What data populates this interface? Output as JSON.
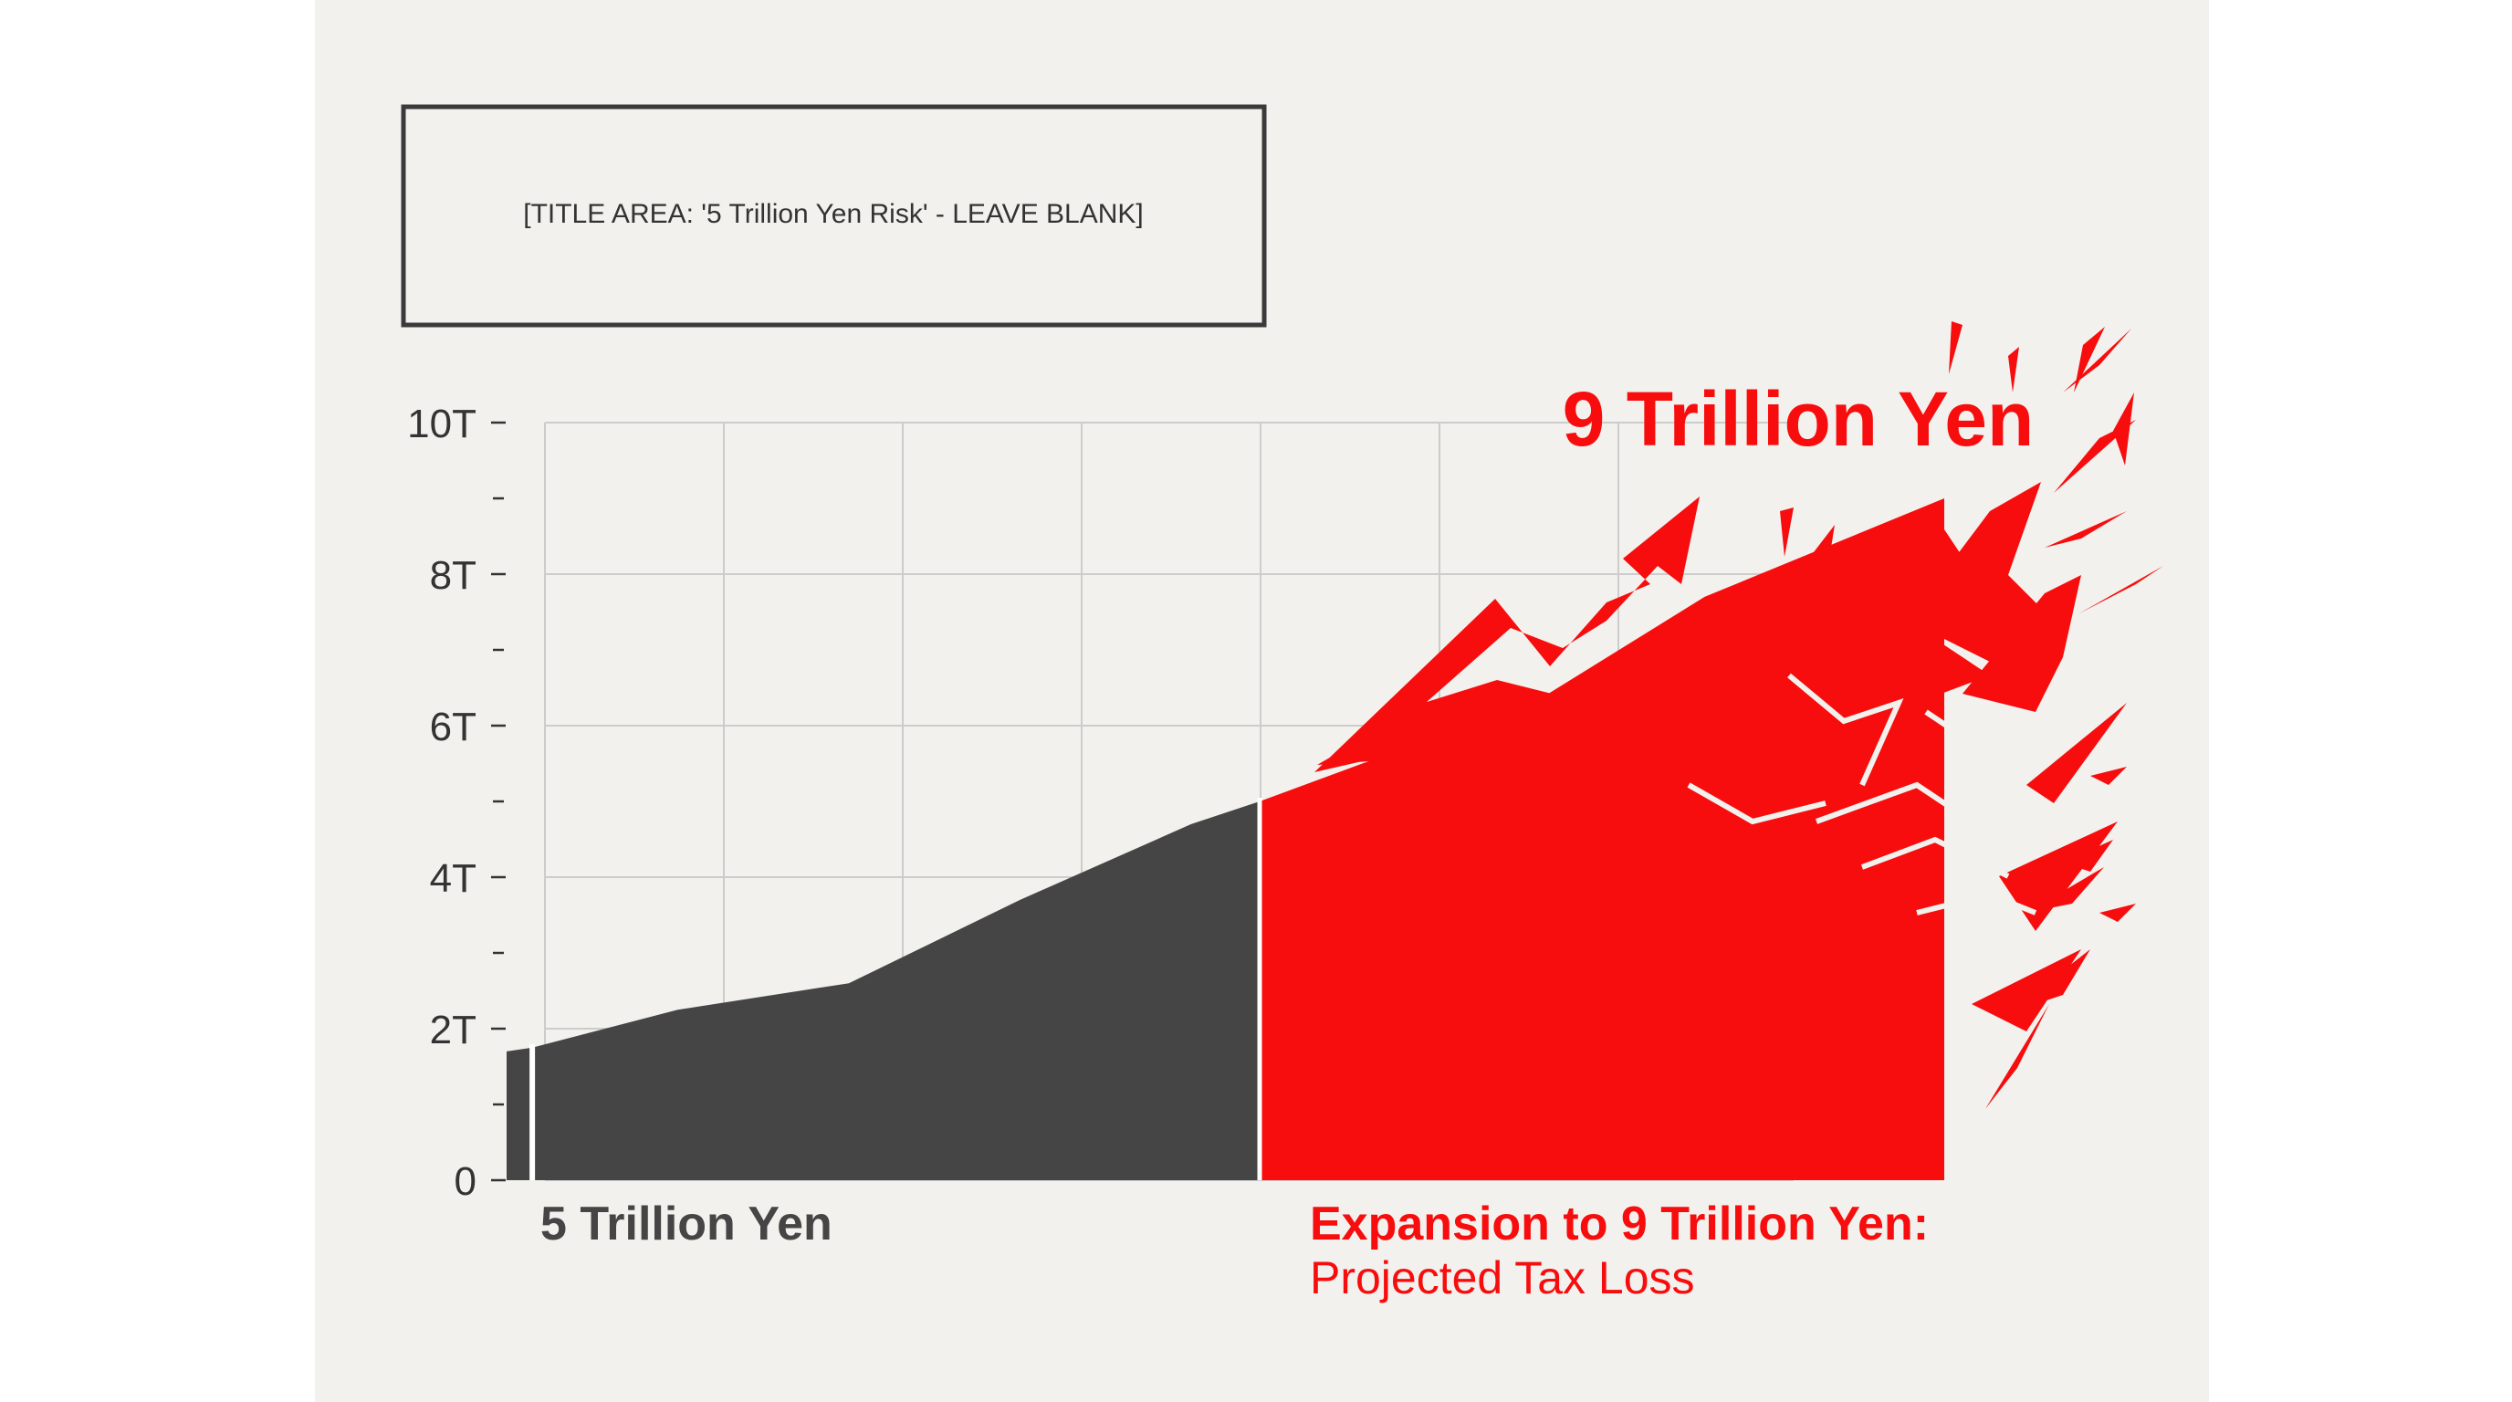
{
  "title_placeholder": "[TITLE AREA: '5 Trillion Yen Risk' - LEAVE BLANK]",
  "callout": "9 Trillion Yen",
  "labels": {
    "current": "5 Trillion Yen",
    "expansion_title": "Expansion to 9 Trillion Yen:",
    "expansion_subtitle": "Projected Tax Loss"
  },
  "colors": {
    "paper": "#f2f1ed",
    "current": "#454545",
    "expansion": "#f70d0d",
    "grid": "#cccccc",
    "text": "#333333"
  },
  "chart_data": {
    "type": "area",
    "title": "",
    "xlabel": "",
    "ylabel": "",
    "ylim": [
      0,
      10
    ],
    "yticks": [
      0,
      2,
      4,
      6,
      8,
      10
    ],
    "ytick_labels": [
      "0",
      "2T",
      "4T",
      "6T",
      "8T",
      "10T"
    ],
    "grid": true,
    "series": [
      {
        "name": "5 Trillion Yen",
        "color": "#454545",
        "x": [
          0,
          0.15,
          1,
          2,
          3,
          4,
          4.4
        ],
        "y": [
          1.7,
          1.75,
          2.25,
          2.6,
          3.7,
          4.7,
          5.0
        ]
      },
      {
        "name": "Expansion to 9 Trillion Yen: Projected Tax Loss",
        "color": "#f70d0d",
        "x": [
          4.4,
          5,
          6,
          7,
          8.4
        ],
        "y": [
          5.0,
          5.5,
          6.3,
          7.7,
          9.0
        ]
      }
    ],
    "annotations": [
      "9 Trillion Yen"
    ]
  }
}
